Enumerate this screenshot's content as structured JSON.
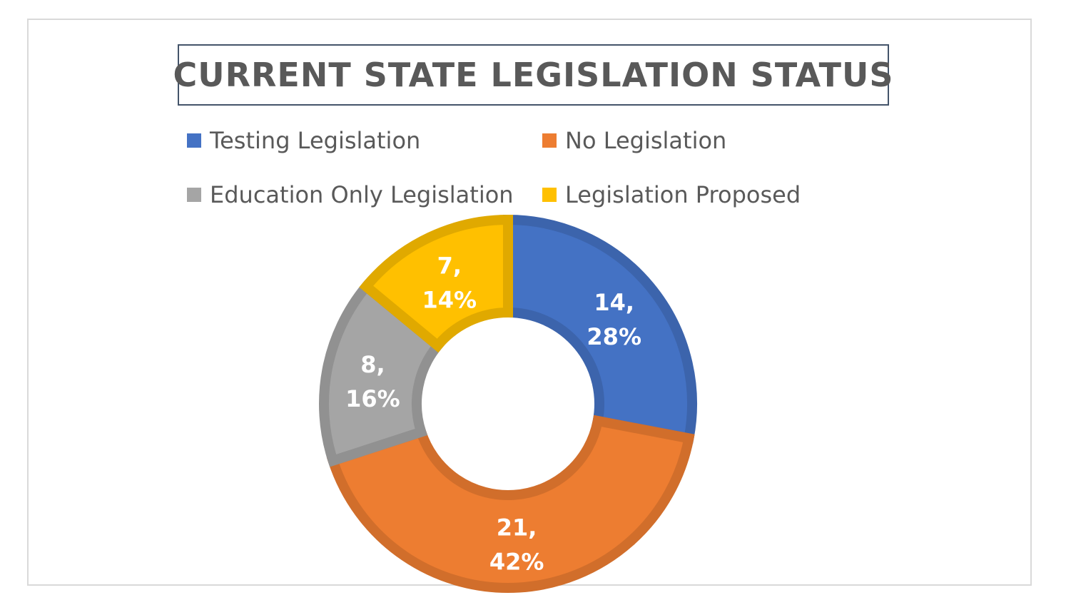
{
  "chart_data": {
    "type": "pie",
    "subtype": "donut",
    "title": "CURRENT STATE LEGISLATION STATUS",
    "legend_position": "top",
    "slices": [
      {
        "name": "Testing Legislation",
        "value": 14,
        "percent_label": "28%",
        "value_label": "14,",
        "color": "#4472c4"
      },
      {
        "name": "No Legislation",
        "value": 21,
        "percent_label": "42%",
        "value_label": "21,",
        "color": "#ed7d31"
      },
      {
        "name": "Education Only Legislation",
        "value": 8,
        "percent_label": "16%",
        "value_label": "8,",
        "color": "#a5a5a5"
      },
      {
        "name": "Legislation Proposed",
        "value": 7,
        "percent_label": "14%",
        "value_label": "7,",
        "color": "#ffc000"
      }
    ]
  }
}
